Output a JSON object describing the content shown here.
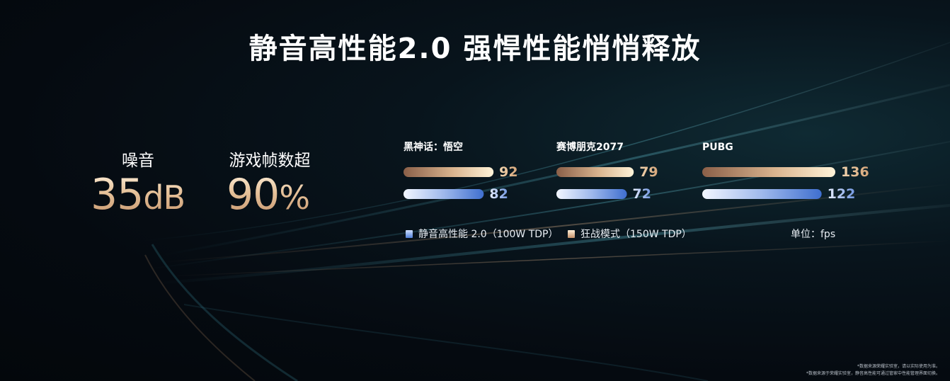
{
  "title": "静音高性能2.0 强悍性能悄悄释放",
  "stats": [
    {
      "label": "噪音",
      "number": "35",
      "unit": "dB"
    },
    {
      "label": "游戏帧数超",
      "number": "90",
      "unit": "%"
    }
  ],
  "chart_data": {
    "type": "bar",
    "orientation": "horizontal",
    "categories": [
      "黑神话：悟空",
      "赛博朋克2077",
      "PUBG"
    ],
    "series": [
      {
        "name": "狂战模式（150W TDP）",
        "values": [
          92,
          79,
          136
        ],
        "color": "#e8c9a0"
      },
      {
        "name": "静音高性能 2.0（100W TDP）",
        "values": [
          82,
          72,
          122
        ],
        "color": "#4f7fd8"
      }
    ],
    "unit": "单位：fps",
    "colors": {
      "gold_start": "#8a5f48",
      "gold_end": "#fff3d8",
      "blue_start": "#f2f6ff",
      "blue_end": "#3f6fcf"
    }
  },
  "legend": {
    "blue": "静音高性能 2.0（100W TDP）",
    "gold": "狂战模式（150W TDP）"
  },
  "unit_label": "单位：fps",
  "footnotes": [
    "*数据来源荣耀实验室，请以实际使用为准。",
    "*数据来源于荣耀实验室，静音高性能可通过管家中性能管理界面切换。"
  ]
}
